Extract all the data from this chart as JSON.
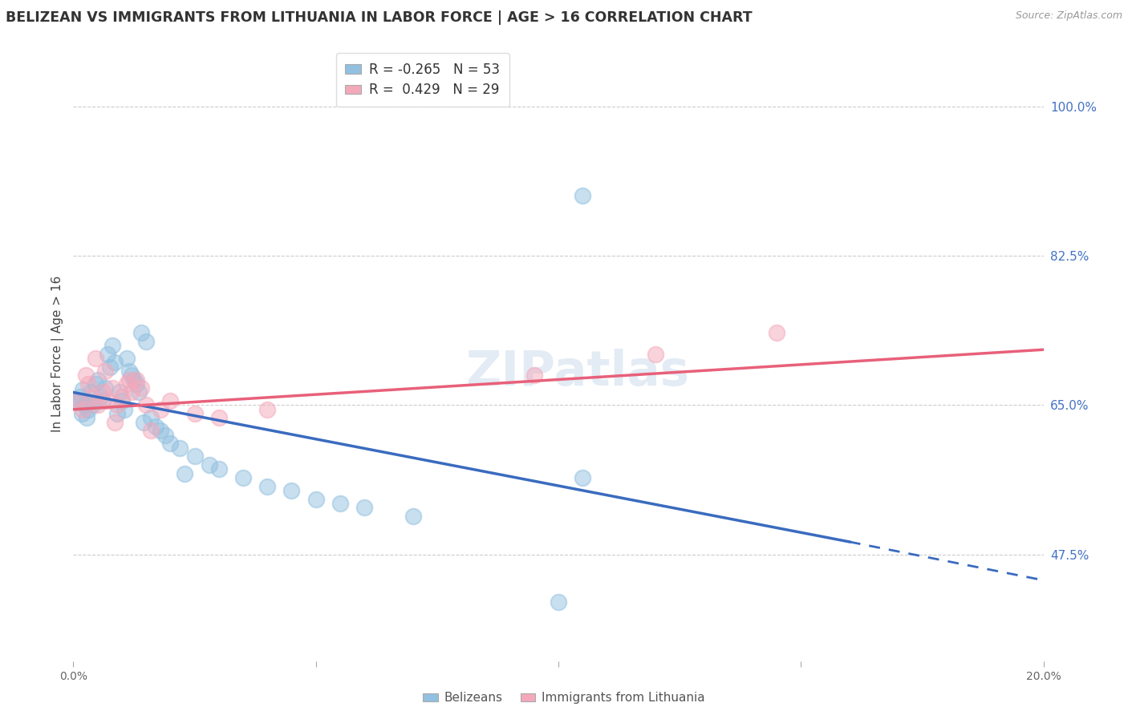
{
  "title": "BELIZEAN VS IMMIGRANTS FROM LITHUANIA IN LABOR FORCE | AGE > 16 CORRELATION CHART",
  "source": "Source: ZipAtlas.com",
  "ylabel": "In Labor Force | Age > 16",
  "xlim": [
    0.0,
    20.0
  ],
  "ylim": [
    35.0,
    107.0
  ],
  "blue_R": -0.265,
  "blue_N": 53,
  "pink_R": 0.429,
  "pink_N": 29,
  "blue_color": "#92c0e0",
  "pink_color": "#f4a9bb",
  "blue_line_color": "#3a6bbf",
  "pink_line_color": "#e8607a",
  "blue_line_x0": 0.0,
  "blue_line_y0": 66.5,
  "blue_line_x1": 16.0,
  "blue_line_y1": 49.0,
  "blue_dash_x0": 16.0,
  "blue_dash_y0": 49.0,
  "blue_dash_x1": 20.0,
  "blue_dash_y1": 44.5,
  "pink_line_x0": 0.0,
  "pink_line_y0": 64.5,
  "pink_line_x1": 20.0,
  "pink_line_y1": 71.5,
  "watermark": "ZIPatlas",
  "legend_label_blue": "Belizeans",
  "legend_label_pink": "Immigrants from Lithuania",
  "ylabel_ticks": [
    "47.5%",
    "65.0%",
    "82.5%",
    "100.0%"
  ],
  "ylabel_vals": [
    47.5,
    65.0,
    82.5,
    100.0
  ],
  "xlabel_ticks": [
    "0.0%",
    "",
    "",
    "",
    "20.0%"
  ],
  "xlabel_vals": [
    0.0,
    5.0,
    10.0,
    15.0,
    20.0
  ],
  "blue_scatter_x": [
    0.1,
    0.15,
    0.2,
    0.25,
    0.3,
    0.35,
    0.4,
    0.45,
    0.5,
    0.55,
    0.6,
    0.65,
    0.7,
    0.75,
    0.8,
    0.85,
    0.9,
    0.95,
    1.0,
    1.05,
    1.1,
    1.15,
    1.2,
    1.25,
    1.3,
    1.35,
    1.4,
    1.5,
    1.6,
    1.7,
    1.8,
    1.9,
    2.0,
    2.2,
    2.5,
    2.8,
    3.0,
    3.5,
    4.0,
    4.5,
    5.0,
    5.5,
    6.0,
    7.0,
    2.3,
    1.45,
    0.18,
    0.22,
    0.28,
    0.12,
    10.5,
    10.5,
    10.0
  ],
  "blue_scatter_y": [
    65.5,
    66.0,
    66.8,
    65.0,
    64.5,
    66.5,
    65.0,
    67.5,
    68.0,
    66.0,
    65.5,
    67.0,
    71.0,
    69.5,
    72.0,
    70.0,
    64.0,
    66.5,
    65.5,
    64.5,
    70.5,
    69.0,
    68.5,
    68.0,
    67.5,
    66.5,
    73.5,
    72.5,
    63.5,
    62.5,
    62.0,
    61.5,
    60.5,
    60.0,
    59.0,
    58.0,
    57.5,
    56.5,
    55.5,
    55.0,
    54.0,
    53.5,
    53.0,
    52.0,
    57.0,
    63.0,
    64.0,
    65.0,
    63.5,
    65.5,
    89.5,
    56.5,
    42.0
  ],
  "pink_scatter_x": [
    0.1,
    0.2,
    0.3,
    0.4,
    0.5,
    0.6,
    0.7,
    0.8,
    0.9,
    1.0,
    1.1,
    1.2,
    1.3,
    1.4,
    1.5,
    1.8,
    2.0,
    2.5,
    3.0,
    4.0,
    0.25,
    0.45,
    0.65,
    0.85,
    1.15,
    1.6,
    9.5,
    14.5,
    12.0
  ],
  "pink_scatter_y": [
    65.5,
    64.5,
    67.5,
    66.0,
    65.0,
    66.5,
    65.5,
    67.0,
    65.0,
    66.0,
    67.5,
    66.5,
    68.0,
    67.0,
    65.0,
    64.5,
    65.5,
    64.0,
    63.5,
    64.5,
    68.5,
    70.5,
    69.0,
    63.0,
    68.0,
    62.0,
    68.5,
    73.5,
    71.0
  ]
}
